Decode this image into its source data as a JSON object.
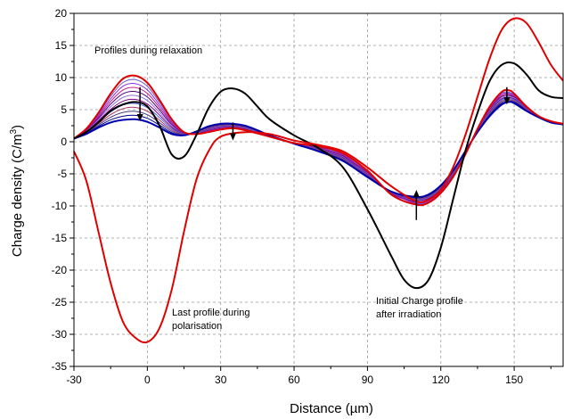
{
  "chart_data": {
    "type": "line",
    "xlabel": "Distance (µm)",
    "ylabel": "Charge density (C/m",
    "ylabel_sup": "3",
    "ylabel_close": ")",
    "xlim": [
      -30,
      170
    ],
    "ylim": [
      -35,
      20
    ],
    "xticks": [
      -30,
      0,
      30,
      60,
      90,
      120,
      150
    ],
    "yticks": [
      -35,
      -30,
      -25,
      -20,
      -15,
      -10,
      -5,
      0,
      5,
      10,
      15,
      20
    ],
    "grid": true,
    "annotations": {
      "relaxation": "Profiles during relaxation",
      "last_polarisation_line1": "Last profile during",
      "last_polarisation_line2": "polarisation",
      "initial_line1": "Initial Charge profile",
      "initial_line2": "after irradiation"
    },
    "series": [
      {
        "color": "#e00000",
        "x": [
          -30,
          -25,
          -20,
          -15,
          -10,
          -5,
          0,
          5,
          10,
          15,
          20,
          25,
          30,
          40,
          50,
          60,
          70,
          80,
          90,
          100,
          110,
          115,
          120,
          125,
          130,
          135,
          140,
          145,
          150,
          155,
          160,
          165,
          170
        ],
        "y": [
          -1.5,
          -6,
          -14,
          -22,
          -28,
          -30.5,
          -31.2,
          -29,
          -23,
          -14,
          -6,
          -1.5,
          0.8,
          1.5,
          1.2,
          0.2,
          -0.5,
          -1.5,
          -4,
          -7,
          -9.3,
          -9,
          -7.5,
          -4,
          1,
          7,
          13,
          17.5,
          19.2,
          18.5,
          15.5,
          12,
          9.5
        ]
      },
      {
        "color": "#e00000",
        "x": [
          -30,
          -25,
          -20,
          -15,
          -10,
          -5,
          0,
          5,
          10,
          15,
          20,
          25,
          30,
          35,
          40,
          45,
          50,
          60,
          70,
          80,
          90,
          100,
          110,
          115,
          120,
          125,
          130,
          135,
          140,
          145,
          148,
          150,
          155,
          160,
          165,
          170
        ],
        "y": [
          0.5,
          2,
          4.5,
          7.5,
          9.8,
          10.3,
          9.2,
          6.5,
          3.5,
          1.5,
          1.2,
          1.5,
          1.9,
          2.1,
          1.8,
          1.3,
          0.8,
          -0.2,
          -0.7,
          -1.8,
          -4.5,
          -8.3,
          -9.8,
          -9.5,
          -8,
          -5.5,
          -2,
          2,
          5.5,
          7.8,
          8,
          7.5,
          5.5,
          4,
          3.2,
          2.8
        ]
      },
      {
        "color": "#000000",
        "x": [
          -30,
          -25,
          -20,
          -15,
          -10,
          -5,
          0,
          5,
          10,
          15,
          20,
          25,
          30,
          35,
          40,
          45,
          50,
          60,
          70,
          80,
          90,
          100,
          105,
          110,
          115,
          120,
          125,
          130,
          135,
          140,
          145,
          150,
          155,
          160,
          165,
          170
        ],
        "y": [
          0.5,
          1.5,
          3,
          4.8,
          5.8,
          6.2,
          5.5,
          2.5,
          -2,
          -2.3,
          1,
          5.2,
          7.8,
          8.3,
          7.5,
          5.5,
          3.5,
          1,
          -1,
          -4,
          -10.5,
          -18,
          -21.5,
          -22.8,
          -21.5,
          -16.5,
          -9,
          -1.5,
          4.5,
          9.5,
          12,
          12.2,
          10.5,
          8,
          7,
          6.8
        ]
      },
      {
        "color": "#0000b0",
        "x": [
          -30,
          -25,
          -20,
          -15,
          -10,
          -5,
          0,
          5,
          10,
          15,
          20,
          25,
          30,
          35,
          40,
          45,
          50,
          60,
          70,
          80,
          90,
          100,
          110,
          115,
          120,
          125,
          130,
          135,
          140,
          145,
          148,
          150,
          155,
          160,
          165,
          170
        ],
        "y": [
          0.5,
          1.2,
          2.2,
          3,
          3.4,
          3.5,
          3.1,
          2.2,
          1.2,
          1,
          1.6,
          2.4,
          2.8,
          2.8,
          2.5,
          1.8,
          1,
          -0.3,
          -1.5,
          -3,
          -5.5,
          -7.8,
          -8.6,
          -8.2,
          -6.8,
          -4.5,
          -1.5,
          1.5,
          4,
          5.8,
          6.2,
          6,
          4.8,
          3.8,
          3,
          2.7
        ]
      }
    ],
    "relaxation_band": {
      "colors": [
        "#6a5acd",
        "#8a2be2",
        "#c71585",
        "#4b0082",
        "#9370db",
        "#800080",
        "#4169e1",
        "#b03060",
        "#483d8b",
        "#00008b"
      ],
      "count": 10
    }
  }
}
